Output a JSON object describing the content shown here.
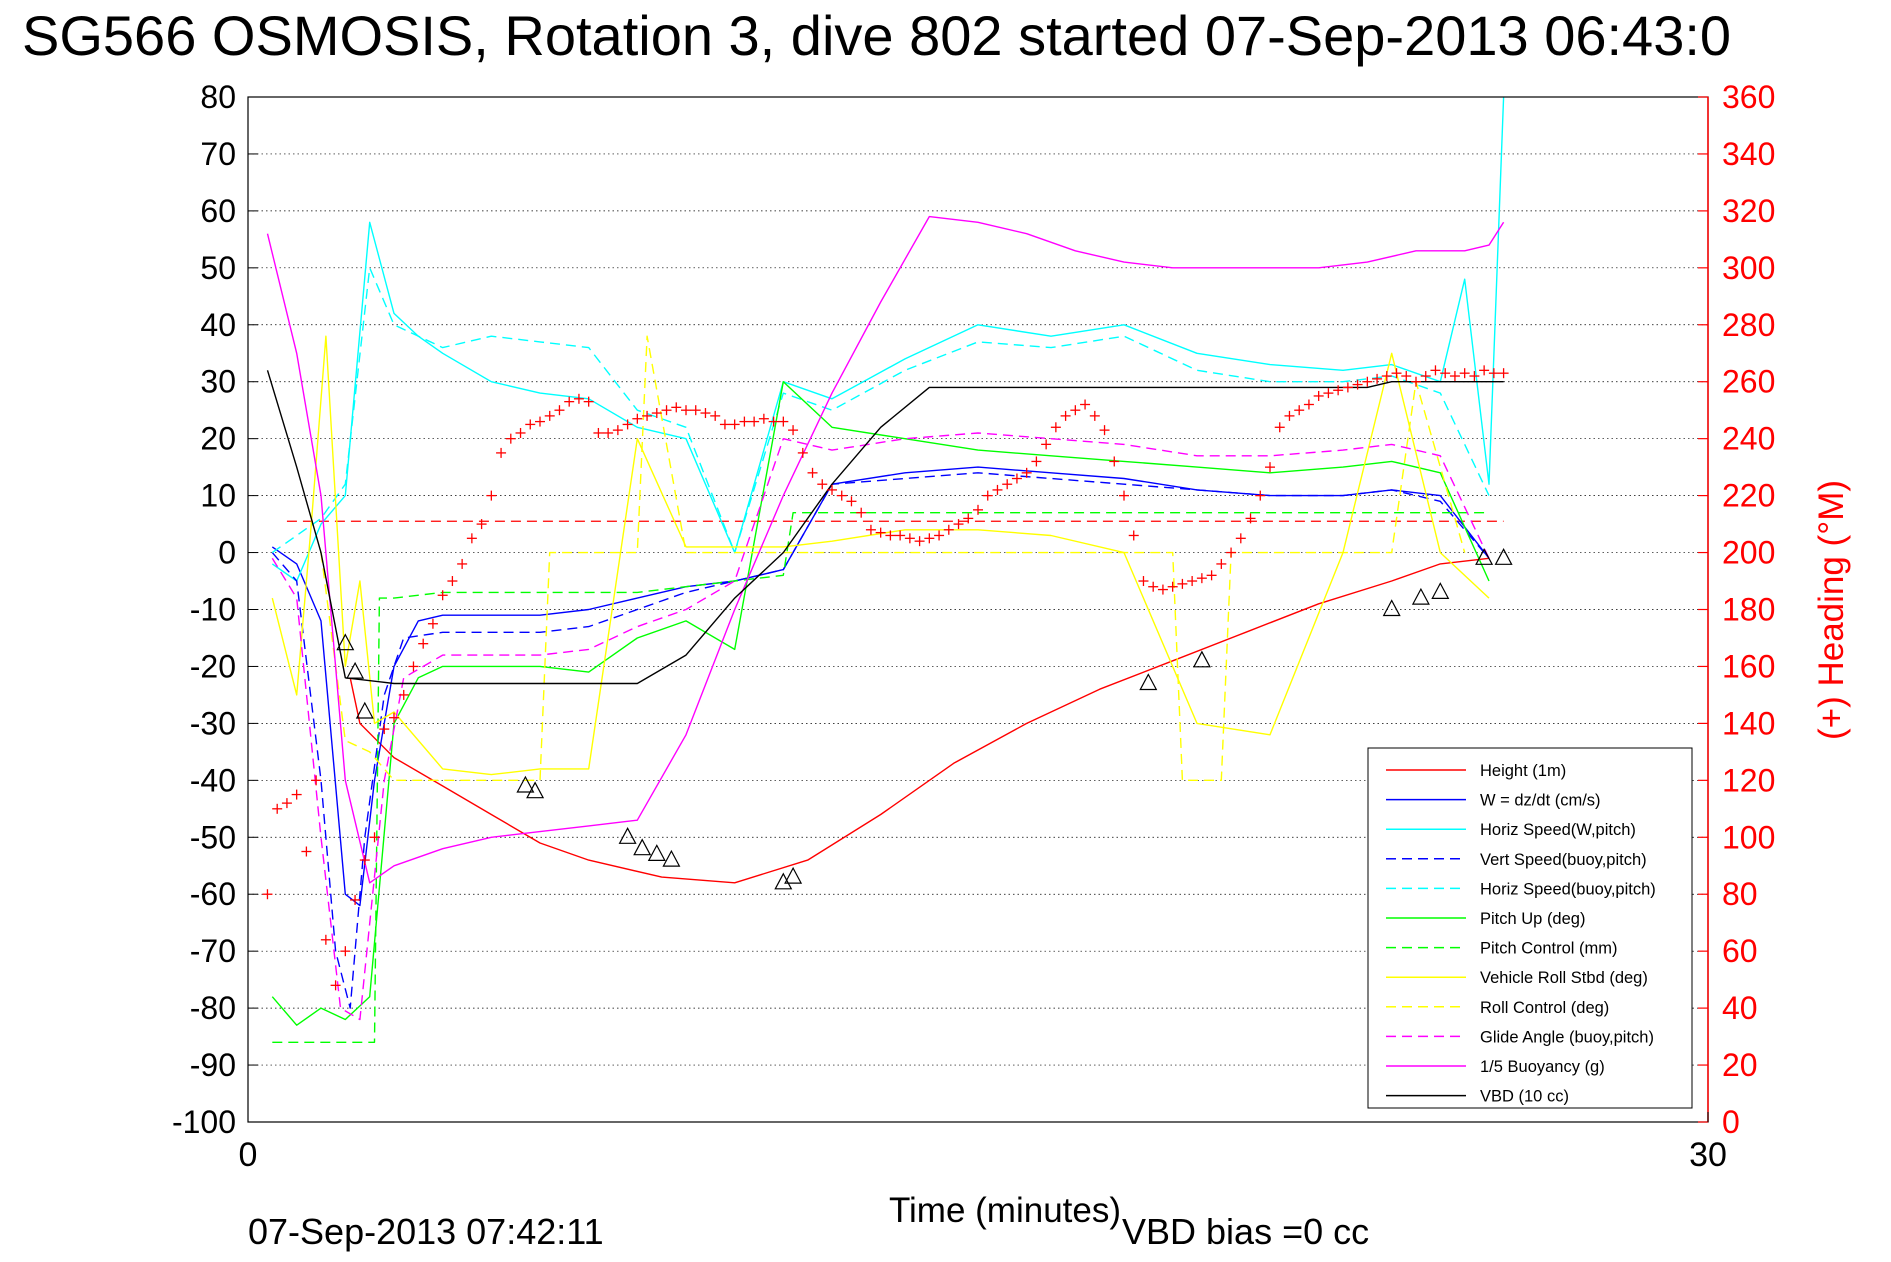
{
  "title": "SG566 OSMOSIS, Rotation 3, dive 802 started 07-Sep-2013 06:43:0",
  "footer": {
    "timestamp": "07-Sep-2013 07:42:11",
    "vbd_bias": "VBD bias =0 cc"
  },
  "colors": {
    "red": "#ff0000",
    "blue": "#0000ff",
    "cyan": "#00ffff",
    "green": "#00ff00",
    "yellow": "#ffff00",
    "magenta": "#ff00ff",
    "black": "#000000"
  },
  "chart_data": {
    "type": "line",
    "title": "SG566 OSMOSIS, Rotation 3, dive 802 started 07-Sep-2013 06:43:0",
    "xlabel": "Time (minutes)",
    "ylabel_right": "(+) Heading (°M)",
    "xlim": [
      0,
      30
    ],
    "ylim": [
      -100,
      80
    ],
    "ylim_right": [
      0,
      360
    ],
    "x_ticks": [
      "0",
      "30"
    ],
    "y_ticks": [
      "80",
      "70",
      "60",
      "50",
      "40",
      "30",
      "20",
      "10",
      "0",
      "-10",
      "-20",
      "-30",
      "-40",
      "-50",
      "-60",
      "-70",
      "-80",
      "-90",
      "-100"
    ],
    "y_ticks_right": [
      "360",
      "340",
      "320",
      "300",
      "280",
      "260",
      "240",
      "220",
      "200",
      "180",
      "160",
      "140",
      "120",
      "100",
      "80",
      "60",
      "40",
      "20",
      "0"
    ],
    "grid": "horizontal dotted",
    "legend_position": "lower-right",
    "series": [
      {
        "name": "Height (1m)",
        "color": "#ff0000",
        "dash": "solid",
        "x": [
          2.1,
          2.3,
          3.0,
          4.0,
          5.0,
          6.0,
          7.0,
          8.5,
          10.0,
          11.5,
          13.0,
          14.5,
          16.0,
          17.5,
          19.0,
          20.5,
          22.0,
          23.5,
          24.5,
          25.5
        ],
        "y": [
          -22,
          -30,
          -36,
          -41,
          -46,
          -51,
          -54,
          -57,
          -58,
          -54,
          -46,
          -37,
          -30,
          -24,
          -19,
          -14,
          -9,
          -5,
          -2,
          -1
        ]
      },
      {
        "name": "W = dz/dt (cm/s)",
        "color": "#0000ff",
        "dash": "solid",
        "x": [
          0.5,
          1.0,
          1.5,
          2.0,
          2.3,
          2.6,
          3.0,
          3.5,
          4.0,
          5.0,
          6.0,
          7.0,
          8.0,
          9.0,
          10.0,
          11.0,
          12.0,
          13.5,
          15.0,
          16.5,
          18.0,
          19.5,
          21.0,
          22.5,
          23.5,
          24.5,
          25.5
        ],
        "y": [
          1,
          -2,
          -12,
          -60,
          -62,
          -40,
          -20,
          -12,
          -11,
          -11,
          -11,
          -10,
          -8,
          -6,
          -5,
          -3,
          12,
          14,
          15,
          14,
          13,
          11,
          10,
          10,
          11,
          10,
          -1
        ]
      },
      {
        "name": "Horiz Speed(W,pitch)",
        "color": "#00ffff",
        "dash": "solid",
        "x": [
          0.5,
          1.0,
          1.5,
          2.0,
          2.5,
          3.0,
          3.5,
          4.0,
          5.0,
          6.0,
          7.0,
          8.0,
          9.0,
          10.0,
          11.0,
          12.0,
          13.5,
          15.0,
          16.5,
          18.0,
          19.5,
          21.0,
          22.5,
          23.5,
          24.5,
          25.0,
          25.5,
          25.8
        ],
        "y": [
          -2,
          -5,
          5,
          10,
          58,
          42,
          38,
          35,
          30,
          28,
          27,
          22,
          20,
          0,
          30,
          27,
          34,
          40,
          38,
          40,
          35,
          33,
          32,
          33,
          30,
          48,
          12,
          80
        ]
      },
      {
        "name": "Vert Speed(buoy,pitch)",
        "color": "#0000ff",
        "dash": "dashed",
        "x": [
          0.5,
          1.0,
          1.5,
          1.8,
          2.1,
          2.4,
          2.8,
          3.2,
          4.0,
          5.0,
          6.0,
          7.0,
          8.0,
          9.0,
          10.0,
          11.0,
          12.0,
          13.5,
          15.0,
          16.5,
          18.0,
          19.5,
          21.0,
          22.5,
          23.5,
          24.5,
          25.5
        ],
        "y": [
          0,
          -5,
          -40,
          -70,
          -80,
          -50,
          -25,
          -15,
          -14,
          -14,
          -14,
          -13,
          -10,
          -7,
          -5,
          -3,
          12,
          13,
          14,
          13,
          12,
          11,
          10,
          10,
          11,
          9,
          -1
        ]
      },
      {
        "name": "Horiz Speed(buoy,pitch)",
        "color": "#00ffff",
        "dash": "dashed",
        "x": [
          0.5,
          1.0,
          1.5,
          2.0,
          2.5,
          3.0,
          4.0,
          5.0,
          6.0,
          7.0,
          8.0,
          9.0,
          10.0,
          11.0,
          12.0,
          13.5,
          15.0,
          16.5,
          18.0,
          19.5,
          21.0,
          22.5,
          23.5,
          24.5,
          25.5
        ],
        "y": [
          0,
          3,
          6,
          12,
          50,
          40,
          36,
          38,
          37,
          36,
          25,
          22,
          0,
          28,
          25,
          32,
          37,
          36,
          38,
          32,
          30,
          30,
          31,
          28,
          10
        ]
      },
      {
        "name": "Pitch Up (deg)",
        "color": "#00ff00",
        "dash": "solid",
        "x": [
          0.5,
          1.0,
          1.5,
          2.0,
          2.5,
          3.0,
          3.5,
          4.0,
          5.0,
          6.0,
          7.0,
          8.0,
          9.0,
          10.0,
          11.0,
          12.0,
          13.5,
          15.0,
          16.5,
          18.0,
          19.5,
          21.0,
          22.5,
          23.5,
          24.5,
          25.5
        ],
        "y": [
          -78,
          -83,
          -80,
          -82,
          -78,
          -30,
          -22,
          -20,
          -20,
          -20,
          -21,
          -15,
          -12,
          -17,
          30,
          22,
          20,
          18,
          17,
          16,
          15,
          14,
          15,
          16,
          14,
          -5
        ]
      },
      {
        "name": "Pitch Control (mm)",
        "color": "#00ff00",
        "dash": "dashed",
        "x": [
          0.5,
          1.0,
          2.0,
          2.6,
          2.7,
          3.0,
          4.0,
          5.0,
          6.0,
          7.0,
          8.0,
          9.0,
          10.0,
          11.0,
          11.2,
          13.0,
          15.0,
          17.0,
          19.0,
          21.0,
          23.0,
          25.5
        ],
        "y": [
          -86,
          -86,
          -86,
          -86,
          -8,
          -8,
          -7,
          -7,
          -7,
          -7,
          -7,
          -6,
          -5,
          -4,
          7,
          7,
          7,
          7,
          7,
          7,
          7,
          7
        ]
      },
      {
        "name": "Vehicle Roll Stbd (deg)",
        "color": "#ffff00",
        "dash": "solid",
        "x": [
          0.5,
          1.0,
          1.3,
          1.6,
          2.0,
          2.3,
          2.6,
          3.0,
          4.0,
          5.0,
          6.0,
          7.0,
          8.0,
          9.0,
          10.0,
          11.0,
          12.0,
          13.5,
          15.0,
          16.5,
          18.0,
          19.5,
          21.0,
          22.5,
          23.5,
          24.5,
          25.5
        ],
        "y": [
          -8,
          -25,
          5,
          38,
          -20,
          -5,
          -30,
          -28,
          -38,
          -39,
          -38,
          -38,
          20,
          1,
          1,
          1,
          2,
          4,
          4,
          3,
          0,
          -30,
          -32,
          0,
          35,
          0,
          -8
        ]
      },
      {
        "name": "Roll Control (deg)",
        "color": "#ffff00",
        "dash": "dashed",
        "x": [
          1.5,
          2.0,
          2.5,
          3.0,
          4.0,
          5.0,
          6.0,
          6.2,
          7.0,
          8.0,
          8.2,
          9.0,
          11.0,
          13.0,
          15.0,
          17.0,
          19.0,
          19.2,
          20.0,
          20.2,
          22.0,
          23.5,
          24.0,
          25.0
        ],
        "y": [
          0,
          -33,
          -35,
          -40,
          -40,
          -40,
          -40,
          0,
          0,
          0,
          38,
          0,
          0,
          0,
          0,
          0,
          0,
          -40,
          -40,
          0,
          0,
          0,
          30,
          0
        ]
      },
      {
        "name": "Glide Angle (buoy,pitch)",
        "color": "#ff00ff",
        "dash": "dashed",
        "x": [
          0.5,
          1.0,
          1.5,
          1.9,
          2.3,
          2.8,
          3.2,
          4.0,
          5.0,
          6.0,
          7.0,
          8.0,
          9.0,
          10.0,
          11.0,
          12.0,
          13.5,
          15.0,
          16.5,
          18.0,
          19.5,
          21.0,
          22.5,
          23.5,
          24.5,
          25.5
        ],
        "y": [
          -1,
          -8,
          -50,
          -80,
          -82,
          -40,
          -22,
          -18,
          -18,
          -18,
          -17,
          -13,
          -10,
          -5,
          20,
          18,
          20,
          21,
          20,
          19,
          17,
          17,
          18,
          19,
          17,
          -1
        ]
      },
      {
        "name": "1/5 Buoyancy (g)",
        "color": "#ff00ff",
        "dash": "solid",
        "x": [
          0.4,
          1.0,
          1.5,
          2.0,
          2.5,
          3.0,
          4.0,
          5.0,
          6.0,
          7.0,
          8.0,
          9.0,
          10.0,
          11.0,
          12.0,
          13.0,
          14.0,
          15.0,
          16.0,
          17.0,
          18.0,
          19.0,
          20.0,
          21.0,
          22.0,
          23.0,
          24.0,
          25.0,
          25.5,
          25.8
        ],
        "y": [
          56,
          35,
          10,
          -40,
          -58,
          -55,
          -52,
          -50,
          -49,
          -48,
          -47,
          -32,
          -10,
          10,
          28,
          44,
          59,
          58,
          56,
          53,
          51,
          50,
          50,
          50,
          50,
          51,
          53,
          53,
          54,
          58
        ]
      },
      {
        "name": "VBD (10 cc)",
        "color": "#000000",
        "dash": "solid",
        "x": [
          0.4,
          1.0,
          1.5,
          2.0,
          3.0,
          4.0,
          5.0,
          6.0,
          7.0,
          8.0,
          9.0,
          10.0,
          11.0,
          12.0,
          13.0,
          14.0,
          15.0,
          16.0,
          17.0,
          18.0,
          19.0,
          20.0,
          21.0,
          22.0,
          23.0,
          23.5,
          24.5,
          25.8
        ],
        "y": [
          32,
          15,
          0,
          -22,
          -23,
          -23,
          -23,
          -23,
          -23,
          -23,
          -18,
          -8,
          0,
          12,
          22,
          29,
          29,
          29,
          29,
          29,
          29,
          29,
          29,
          29,
          29,
          30,
          30,
          30
        ]
      }
    ],
    "reference_line": {
      "y": 5.5,
      "color": "#ff0000",
      "dash": "dashed"
    },
    "heading_markers": {
      "marker": "+",
      "color": "#ff0000",
      "axis": "right",
      "x": [
        0.4,
        0.6,
        0.8,
        1.0,
        1.2,
        1.4,
        1.6,
        1.8,
        2.0,
        2.2,
        2.4,
        2.6,
        2.8,
        3.0,
        3.2,
        3.4,
        3.6,
        3.8,
        4.0,
        4.2,
        4.4,
        4.6,
        4.8,
        5.0,
        5.2,
        5.4,
        5.6,
        5.8,
        6.0,
        6.2,
        6.4,
        6.6,
        6.8,
        7.0,
        7.2,
        7.4,
        7.6,
        7.8,
        8.0,
        8.2,
        8.4,
        8.6,
        8.8,
        9.0,
        9.2,
        9.4,
        9.6,
        9.8,
        10.0,
        10.2,
        10.4,
        10.6,
        10.8,
        11.0,
        11.2,
        11.4,
        11.6,
        11.8,
        12.0,
        12.2,
        12.4,
        12.6,
        12.8,
        13.0,
        13.2,
        13.4,
        13.6,
        13.8,
        14.0,
        14.2,
        14.4,
        14.6,
        14.8,
        15.0,
        15.2,
        15.4,
        15.6,
        15.8,
        16.0,
        16.2,
        16.4,
        16.6,
        16.8,
        17.0,
        17.2,
        17.4,
        17.6,
        17.8,
        18.0,
        18.2,
        18.4,
        18.6,
        18.8,
        19.0,
        19.2,
        19.4,
        19.6,
        19.8,
        20.0,
        20.2,
        20.4,
        20.6,
        20.8,
        21.0,
        21.2,
        21.4,
        21.6,
        21.8,
        22.0,
        22.2,
        22.4,
        22.6,
        22.8,
        23.0,
        23.2,
        23.4,
        23.6,
        23.8,
        24.0,
        24.2,
        24.4,
        24.6,
        24.8,
        25.0,
        25.2,
        25.4,
        25.6,
        25.8
      ],
      "y": [
        80,
        110,
        112,
        115,
        95,
        120,
        64,
        48,
        60,
        78,
        92,
        100,
        138,
        142,
        150,
        160,
        168,
        175,
        185,
        190,
        196,
        205,
        210,
        220,
        235,
        240,
        242,
        245,
        246,
        248,
        250,
        253,
        254,
        253,
        242,
        242,
        243,
        245,
        247,
        248,
        249,
        250,
        251,
        250,
        250,
        249,
        248,
        245,
        245,
        246,
        246,
        247,
        246,
        246,
        243,
        235,
        228,
        224,
        222,
        220,
        218,
        214,
        208,
        207,
        206,
        206,
        205,
        204,
        205,
        206,
        208,
        210,
        212,
        215,
        220,
        222,
        224,
        226,
        228,
        232,
        238,
        244,
        248,
        250,
        252,
        248,
        243,
        232,
        220,
        206,
        190,
        188,
        187,
        188,
        189,
        190,
        191,
        192,
        196,
        200,
        205,
        212,
        220,
        230,
        244,
        248,
        250,
        252,
        255,
        256,
        257,
        258,
        259,
        260,
        261,
        262,
        263,
        262,
        260,
        262,
        264,
        263,
        262,
        263,
        262,
        264,
        263,
        263
      ]
    },
    "triangle_markers": {
      "marker": "triangle",
      "color": "#000000",
      "x": [
        2.0,
        2.2,
        2.4,
        5.7,
        5.9,
        7.8,
        8.1,
        8.4,
        8.7,
        11.0,
        11.2,
        18.5,
        19.6,
        23.5,
        24.1,
        24.5,
        25.4,
        25.8
      ],
      "y": [
        -16,
        -21,
        -28,
        -41,
        -42,
        -50,
        -52,
        -53,
        -54,
        -58,
        -57,
        -23,
        -19,
        -10,
        -8,
        -7,
        -1,
        -1
      ]
    }
  },
  "legend": {
    "items": [
      {
        "label": "Height (1m)",
        "color": "#ff0000",
        "dash": "solid"
      },
      {
        "label": "W = dz/dt (cm/s)",
        "color": "#0000ff",
        "dash": "solid"
      },
      {
        "label": "Horiz Speed(W,pitch)",
        "color": "#00ffff",
        "dash": "solid"
      },
      {
        "label": "Vert Speed(buoy,pitch)",
        "color": "#0000ff",
        "dash": "dashed"
      },
      {
        "label": "Horiz Speed(buoy,pitch)",
        "color": "#00ffff",
        "dash": "dashed"
      },
      {
        "label": "Pitch Up (deg)",
        "color": "#00ff00",
        "dash": "solid"
      },
      {
        "label": "Pitch Control (mm)",
        "color": "#00ff00",
        "dash": "dashed"
      },
      {
        "label": "Vehicle Roll Stbd (deg)",
        "color": "#ffff00",
        "dash": "solid"
      },
      {
        "label": "Roll Control (deg)",
        "color": "#ffff00",
        "dash": "dashed"
      },
      {
        "label": "Glide Angle (buoy,pitch)",
        "color": "#ff00ff",
        "dash": "dashed"
      },
      {
        "label": "1/5 Buoyancy (g)",
        "color": "#ff00ff",
        "dash": "solid"
      },
      {
        "label": "VBD (10 cc)",
        "color": "#000000",
        "dash": "solid"
      }
    ]
  }
}
